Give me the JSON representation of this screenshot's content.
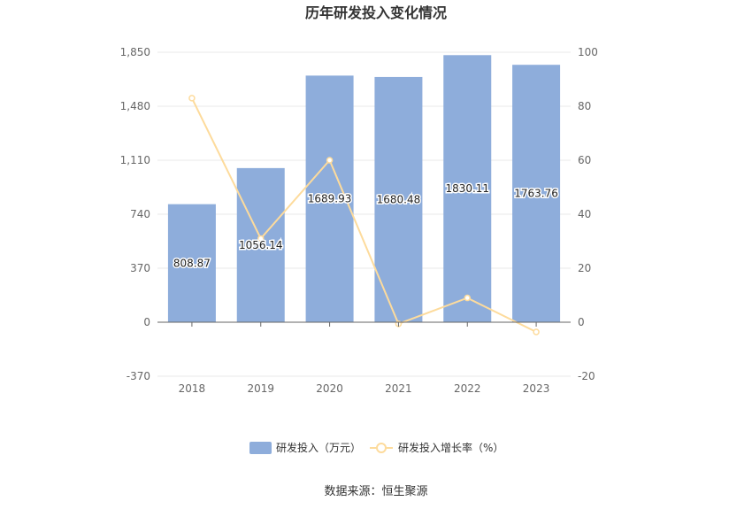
{
  "chart_data": {
    "type": "bar",
    "title": "历年研发投入变化情况",
    "categories": [
      "2018",
      "2019",
      "2020",
      "2021",
      "2022",
      "2023"
    ],
    "series": [
      {
        "name": "研发投入（万元）",
        "type": "bar",
        "axis": "left",
        "color": "#8EADDB",
        "values": [
          808.87,
          1056.14,
          1689.93,
          1680.48,
          1830.11,
          1763.76
        ],
        "labels": [
          "808.87",
          "1056.14",
          "1689.93",
          "1680.48",
          "1830.11",
          "1763.76"
        ]
      },
      {
        "name": "研发投入增长率（%）",
        "type": "line",
        "axis": "right",
        "color": "#FDDB9C",
        "values": [
          83,
          31,
          60,
          -0.6,
          9,
          -3.6
        ]
      }
    ],
    "y_left": {
      "ticks": [
        "1,850",
        "1,480",
        "1,110",
        "740",
        "370",
        "0",
        "-370"
      ],
      "range": [
        -370,
        1850
      ]
    },
    "y_right": {
      "ticks": [
        "100",
        "80",
        "60",
        "40",
        "20",
        "0",
        "-20"
      ],
      "range": [
        -20,
        100
      ]
    },
    "grid": true,
    "legend_position": "bottom"
  },
  "source_text": "数据来源：恒生聚源"
}
